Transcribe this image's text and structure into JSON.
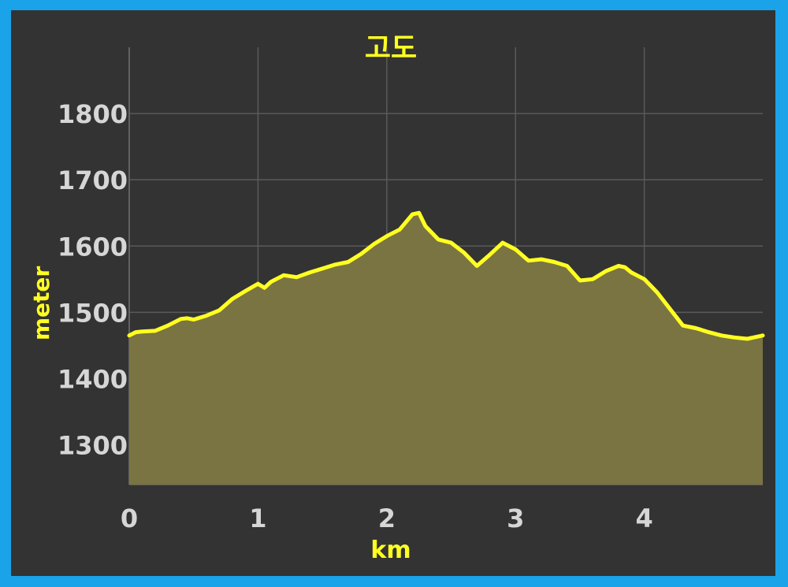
{
  "chart_data": {
    "type": "area",
    "title": "고도",
    "xlabel": "km",
    "ylabel": "meter",
    "xlim": [
      0,
      4.92
    ],
    "ylim": [
      1240,
      1900
    ],
    "x_ticks": [
      0,
      1,
      2,
      3,
      4
    ],
    "y_ticks": [
      1300,
      1400,
      1500,
      1600,
      1700,
      1800
    ],
    "grid": true,
    "colors": {
      "line": "#ffff22",
      "fill": "#7a7443",
      "background": "#333333",
      "frame": "#1aa3e8"
    },
    "x": [
      0,
      0.05,
      0.1,
      0.2,
      0.3,
      0.4,
      0.45,
      0.5,
      0.6,
      0.7,
      0.8,
      0.9,
      1.0,
      1.05,
      1.1,
      1.2,
      1.3,
      1.4,
      1.5,
      1.6,
      1.7,
      1.8,
      1.9,
      2.0,
      2.1,
      2.2,
      2.25,
      2.3,
      2.4,
      2.5,
      2.6,
      2.7,
      2.8,
      2.9,
      3.0,
      3.1,
      3.2,
      3.3,
      3.4,
      3.5,
      3.6,
      3.7,
      3.8,
      3.85,
      3.9,
      4.0,
      4.1,
      4.2,
      4.3,
      4.4,
      4.5,
      4.6,
      4.7,
      4.8,
      4.92
    ],
    "y": [
      1465,
      1470,
      1471,
      1472,
      1480,
      1490,
      1491,
      1489,
      1495,
      1503,
      1520,
      1532,
      1543,
      1537,
      1546,
      1556,
      1553,
      1560,
      1566,
      1572,
      1576,
      1588,
      1603,
      1615,
      1625,
      1648,
      1650,
      1630,
      1610,
      1605,
      1590,
      1570,
      1587,
      1605,
      1595,
      1578,
      1580,
      1576,
      1570,
      1548,
      1550,
      1562,
      1570,
      1568,
      1560,
      1550,
      1530,
      1505,
      1480,
      1476,
      1470,
      1465,
      1462,
      1460,
      1465
    ]
  }
}
